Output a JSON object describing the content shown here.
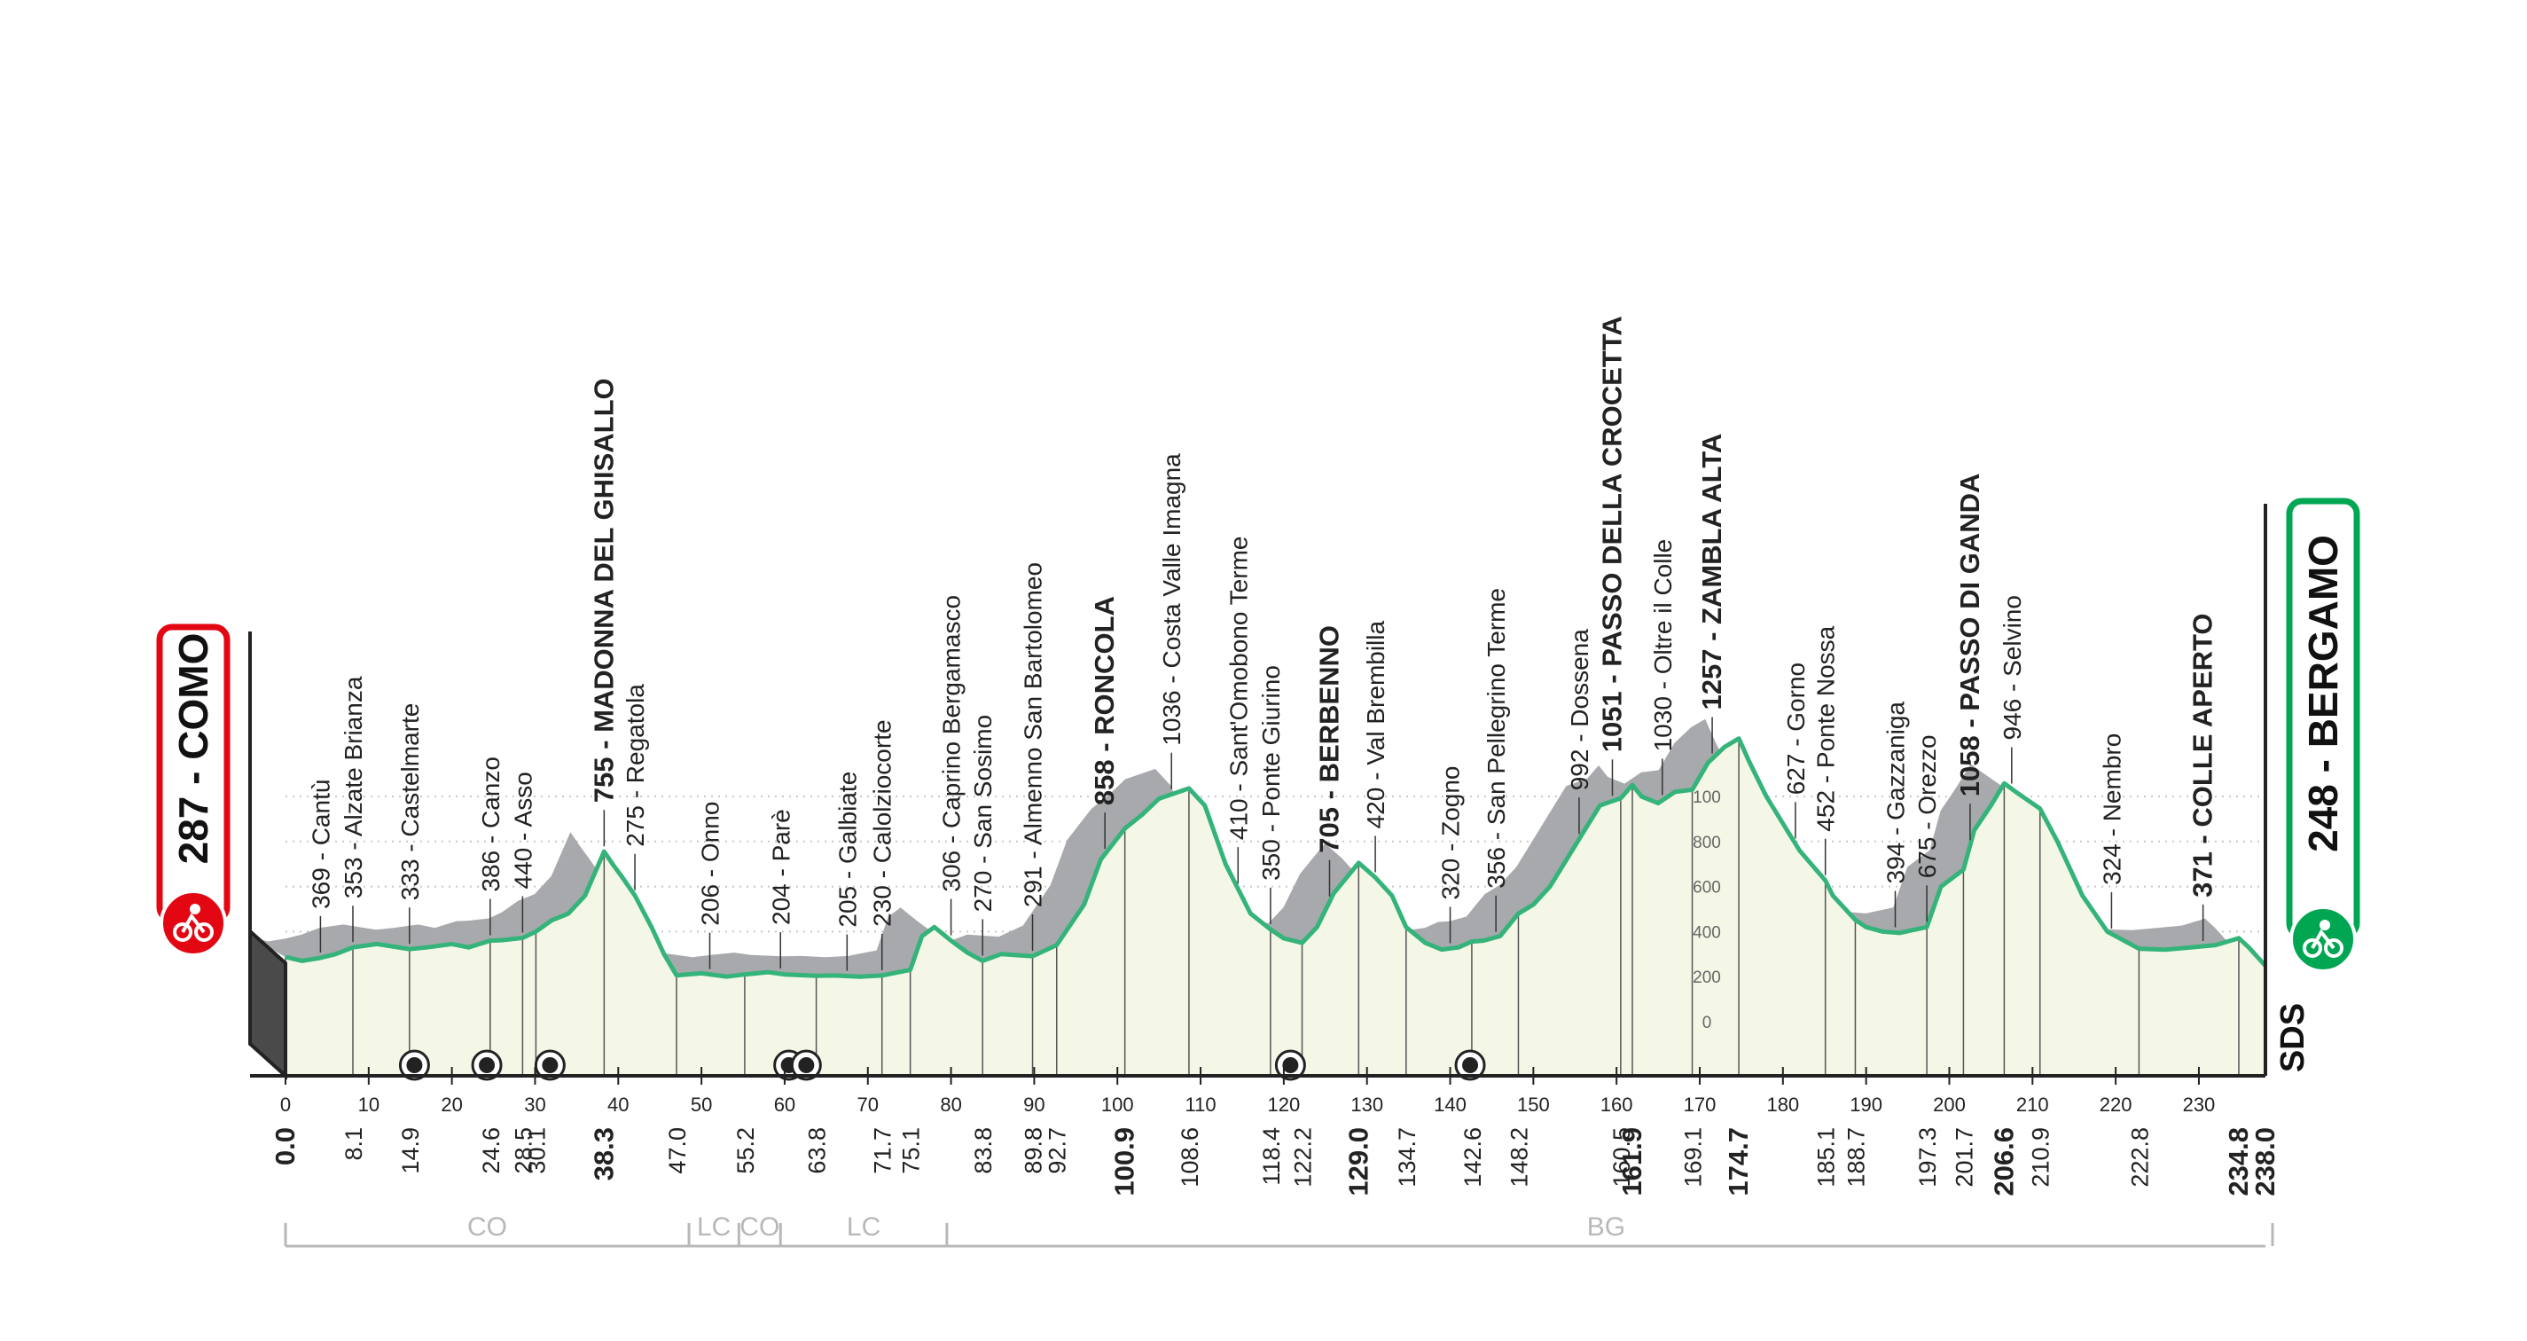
{
  "start": {
    "label": "287 - COMO",
    "color": "#e30613"
  },
  "finish": {
    "label": "248 - BERGAMO",
    "color": "#00a651"
  },
  "brand": "SDS",
  "profile": [
    [
      0,
      287
    ],
    [
      2,
      270
    ],
    [
      4,
      282
    ],
    [
      6,
      300
    ],
    [
      8.1,
      330
    ],
    [
      11,
      345
    ],
    [
      14.9,
      322
    ],
    [
      17,
      330
    ],
    [
      20,
      345
    ],
    [
      22,
      330
    ],
    [
      24.6,
      360
    ],
    [
      26,
      362
    ],
    [
      28.5,
      372
    ],
    [
      30.1,
      400
    ],
    [
      32,
      450
    ],
    [
      34,
      480
    ],
    [
      36,
      560
    ],
    [
      38.3,
      755
    ],
    [
      39.5,
      690
    ],
    [
      40.5,
      640
    ],
    [
      42,
      560
    ],
    [
      44,
      420
    ],
    [
      45.5,
      300
    ],
    [
      47,
      206
    ],
    [
      50,
      215
    ],
    [
      53,
      200
    ],
    [
      55.2,
      210
    ],
    [
      58,
      220
    ],
    [
      60,
      210
    ],
    [
      63.8,
      204
    ],
    [
      66,
      205
    ],
    [
      69,
      200
    ],
    [
      71.7,
      205
    ],
    [
      73,
      215
    ],
    [
      75.1,
      230
    ],
    [
      76.5,
      380
    ],
    [
      78,
      420
    ],
    [
      80,
      360
    ],
    [
      82,
      306
    ],
    [
      83.8,
      270
    ],
    [
      86,
      300
    ],
    [
      89.8,
      291
    ],
    [
      92.7,
      340
    ],
    [
      96,
      520
    ],
    [
      98,
      720
    ],
    [
      100.9,
      858
    ],
    [
      103,
      920
    ],
    [
      105,
      990
    ],
    [
      108.6,
      1036
    ],
    [
      110.5,
      960
    ],
    [
      113,
      700
    ],
    [
      116,
      480
    ],
    [
      118.4,
      410
    ],
    [
      120,
      370
    ],
    [
      122.2,
      350
    ],
    [
      124,
      420
    ],
    [
      126,
      570
    ],
    [
      129,
      705
    ],
    [
      131,
      640
    ],
    [
      133,
      560
    ],
    [
      134.7,
      420
    ],
    [
      137,
      350
    ],
    [
      139,
      320
    ],
    [
      141,
      330
    ],
    [
      142.6,
      356
    ],
    [
      144,
      360
    ],
    [
      146,
      380
    ],
    [
      148.2,
      480
    ],
    [
      150,
      520
    ],
    [
      152,
      600
    ],
    [
      154,
      720
    ],
    [
      156,
      840
    ],
    [
      158,
      960
    ],
    [
      160.5,
      992
    ],
    [
      161.9,
      1051
    ],
    [
      163,
      1000
    ],
    [
      165,
      970
    ],
    [
      167,
      1020
    ],
    [
      169.1,
      1030
    ],
    [
      171,
      1150
    ],
    [
      173,
      1220
    ],
    [
      174.7,
      1257
    ],
    [
      176,
      1150
    ],
    [
      178,
      1000
    ],
    [
      180,
      880
    ],
    [
      182,
      760
    ],
    [
      185.1,
      627
    ],
    [
      186,
      560
    ],
    [
      188.7,
      452
    ],
    [
      190,
      420
    ],
    [
      192,
      400
    ],
    [
      194,
      394
    ],
    [
      197.3,
      420
    ],
    [
      199,
      600
    ],
    [
      201.7,
      675
    ],
    [
      203,
      850
    ],
    [
      205,
      960
    ],
    [
      206.6,
      1058
    ],
    [
      208,
      1020
    ],
    [
      210.9,
      946
    ],
    [
      213,
      800
    ],
    [
      216,
      560
    ],
    [
      219,
      400
    ],
    [
      222.8,
      324
    ],
    [
      226,
      320
    ],
    [
      229,
      330
    ],
    [
      232,
      340
    ],
    [
      234.8,
      371
    ],
    [
      236,
      330
    ],
    [
      238,
      248
    ]
  ],
  "km_ticks": [
    "0",
    "10",
    "20",
    "30",
    "40",
    "50",
    "60",
    "70",
    "80",
    "90",
    "100",
    "110",
    "120",
    "130",
    "140",
    "150",
    "160",
    "170",
    "180",
    "190",
    "200",
    "210",
    "220",
    "230"
  ],
  "altitude_scale": [
    "100",
    "800",
    "600",
    "400",
    "200",
    "0"
  ],
  "distance_markers": [
    {
      "km": 0.0,
      "label": "0.0",
      "bold": true
    },
    {
      "km": 8.1,
      "label": "8.1"
    },
    {
      "km": 14.9,
      "label": "14.9"
    },
    {
      "km": 24.6,
      "label": "24.6"
    },
    {
      "km": 28.5,
      "label": "28.5"
    },
    {
      "km": 30.1,
      "label": "30.1"
    },
    {
      "km": 38.3,
      "label": "38.3",
      "bold": true
    },
    {
      "km": 47.0,
      "label": "47.0"
    },
    {
      "km": 55.2,
      "label": "55.2"
    },
    {
      "km": 63.8,
      "label": "63.8"
    },
    {
      "km": 71.7,
      "label": "71.7"
    },
    {
      "km": 75.1,
      "label": "75.1"
    },
    {
      "km": 83.8,
      "label": "83.8"
    },
    {
      "km": 89.8,
      "label": "89.8"
    },
    {
      "km": 92.7,
      "label": "92.7"
    },
    {
      "km": 100.9,
      "label": "100.9",
      "bold": true
    },
    {
      "km": 108.6,
      "label": "108.6"
    },
    {
      "km": 118.4,
      "label": "118.4"
    },
    {
      "km": 122.2,
      "label": "122.2"
    },
    {
      "km": 129.0,
      "label": "129.0",
      "bold": true
    },
    {
      "km": 134.7,
      "label": "134.7"
    },
    {
      "km": 142.6,
      "label": "142.6"
    },
    {
      "km": 148.2,
      "label": "148.2"
    },
    {
      "km": 160.5,
      "label": "160.5"
    },
    {
      "km": 161.9,
      "label": "161.9",
      "bold": true
    },
    {
      "km": 169.1,
      "label": "169.1"
    },
    {
      "km": 174.7,
      "label": "174.7",
      "bold": true
    },
    {
      "km": 185.1,
      "label": "185.1"
    },
    {
      "km": 188.7,
      "label": "188.7"
    },
    {
      "km": 197.3,
      "label": "197.3"
    },
    {
      "km": 201.7,
      "label": "201.7"
    },
    {
      "km": 206.6,
      "label": "206.6",
      "bold": true
    },
    {
      "km": 210.9,
      "label": "210.9"
    },
    {
      "km": 222.8,
      "label": "222.8"
    },
    {
      "km": 234.8,
      "label": "234.8",
      "bold": true
    },
    {
      "km": 238.0,
      "label": "238.0",
      "bold": true
    }
  ],
  "places": [
    {
      "km": 4.2,
      "label": "369 - Cantù"
    },
    {
      "km": 8.1,
      "label": "353 - Alzate Brianza"
    },
    {
      "km": 14.9,
      "label": "333 - Castelmarte"
    },
    {
      "km": 24.6,
      "label": "386 - Canzo"
    },
    {
      "km": 28.5,
      "label": "440 - Asso"
    },
    {
      "km": 38.3,
      "label": "755 - MADONNA DEL GHISALLO",
      "bold": true
    },
    {
      "km": 42.0,
      "label": "275 - Regatola"
    },
    {
      "km": 51.0,
      "label": "206 - Onno"
    },
    {
      "km": 59.5,
      "label": "204 - Parè"
    },
    {
      "km": 67.5,
      "label": "205 - Galbiate"
    },
    {
      "km": 71.7,
      "label": "230 - Calolziocorte"
    },
    {
      "km": 80.0,
      "label": "306 - Caprino Bergamasco"
    },
    {
      "km": 83.8,
      "label": "270 - San Sosimo"
    },
    {
      "km": 89.8,
      "label": "291 - Almenno San Bartolomeo"
    },
    {
      "km": 98.5,
      "label": "858 - RONCOLA",
      "bold": true
    },
    {
      "km": 106.5,
      "label": "1036 - Costa Valle Imagna"
    },
    {
      "km": 114.5,
      "label": "410 - Sant'Omobono Terme"
    },
    {
      "km": 118.4,
      "label": "350 - Ponte Giurino"
    },
    {
      "km": 125.5,
      "label": "705 - BERBENNO",
      "bold": true
    },
    {
      "km": 131.0,
      "label": "420 - Val Brembilla"
    },
    {
      "km": 140.0,
      "label": "320 - Zogno"
    },
    {
      "km": 145.5,
      "label": "356 - San Pellegrino Terme"
    },
    {
      "km": 155.5,
      "label": "992 - Dossena"
    },
    {
      "km": 159.5,
      "label": "1051 - PASSO DELLA CROCETTA",
      "bold": true
    },
    {
      "km": 165.5,
      "label": "1030 - Oltre il Colle"
    },
    {
      "km": 171.5,
      "label": "1257 - ZAMBLA ALTA",
      "bold": true
    },
    {
      "km": 181.5,
      "label": "627 - Gorno"
    },
    {
      "km": 185.1,
      "label": "452 - Ponte Nossa"
    },
    {
      "km": 193.5,
      "label": "394 - Gazzaniga"
    },
    {
      "km": 197.3,
      "label": "675 - Orezzo"
    },
    {
      "km": 202.5,
      "label": "1058 - PASSO DI GANDA",
      "bold": true
    },
    {
      "km": 207.5,
      "label": "946 - Selvino"
    },
    {
      "km": 219.5,
      "label": "324 - Nembro"
    },
    {
      "km": 230.5,
      "label": "371 - COLLE APERTO",
      "bold": true
    }
  ],
  "tunnels_km": [
    15.5,
    24.2,
    31.8,
    60.5,
    62.6,
    120.8,
    142.4
  ],
  "provinces": [
    {
      "label": "CO",
      "from": 0,
      "to": 48.5
    },
    {
      "label": "LC",
      "from": 48.5,
      "to": 54.5
    },
    {
      "label": "CO",
      "from": 54.5,
      "to": 59.5
    },
    {
      "label": "LC",
      "from": 59.5,
      "to": 79.5
    },
    {
      "label": "BG",
      "from": 79.5,
      "to": 238
    }
  ],
  "colors": {
    "route_line": "#34b37a",
    "mountain": "#a7a9ac",
    "ground": "#f5f7e6",
    "axis": "#222222",
    "text": "#222222",
    "province": "#b8b8b8"
  }
}
